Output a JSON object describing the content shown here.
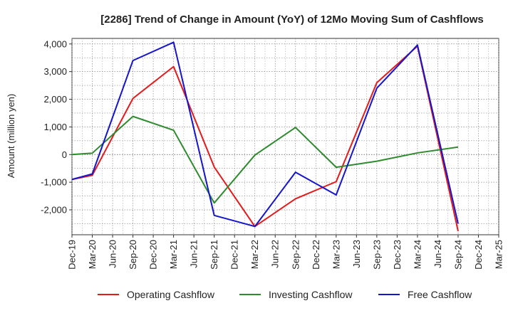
{
  "chart_data": {
    "type": "line",
    "title": "[2286]  Trend of Change in Amount (YoY) of 12Mo Moving Sum of Cashflows",
    "xlabel": "",
    "ylabel": "Amount (million yen)",
    "ylim": [
      -2900,
      4200
    ],
    "yticks": [
      -2000,
      -1000,
      0,
      1000,
      2000,
      3000,
      4000
    ],
    "ytick_labels": [
      "-2,000",
      "-1,000",
      "0",
      "1,000",
      "2,000",
      "3,000",
      "4,000"
    ],
    "categories": [
      "Dec-19",
      "Mar-20",
      "Jun-20",
      "Sep-20",
      "Dec-20",
      "Mar-21",
      "Jun-21",
      "Sep-21",
      "Dec-21",
      "Mar-22",
      "Jun-22",
      "Sep-22",
      "Dec-22",
      "Mar-23",
      "Jun-23",
      "Sep-23",
      "Dec-23",
      "Mar-24",
      "Jun-24",
      "Sep-24",
      "Dec-24",
      "Mar-25"
    ],
    "grid": true,
    "legend_position": "bottom",
    "series": [
      {
        "name": "Operating Cashflow",
        "color": "#e41a1c",
        "values": [
          -900,
          -750,
          null,
          2030,
          null,
          3180,
          null,
          -450,
          null,
          -2600,
          null,
          -1600,
          null,
          -980,
          null,
          2600,
          null,
          3920,
          null,
          -2770,
          null,
          null
        ]
      },
      {
        "name": "Investing Cashflow",
        "color": "#2e8b2e",
        "values": [
          0,
          50,
          null,
          1380,
          null,
          880,
          null,
          -1750,
          null,
          -20,
          null,
          980,
          null,
          -460,
          null,
          -240,
          null,
          60,
          null,
          270,
          null,
          null
        ]
      },
      {
        "name": "Free Cashflow",
        "color": "#1515cc",
        "values": [
          -900,
          -700,
          null,
          3400,
          null,
          4060,
          null,
          -2200,
          null,
          -2600,
          null,
          -640,
          null,
          -1460,
          null,
          2400,
          null,
          3960,
          null,
          -2500,
          null,
          null
        ]
      }
    ]
  }
}
